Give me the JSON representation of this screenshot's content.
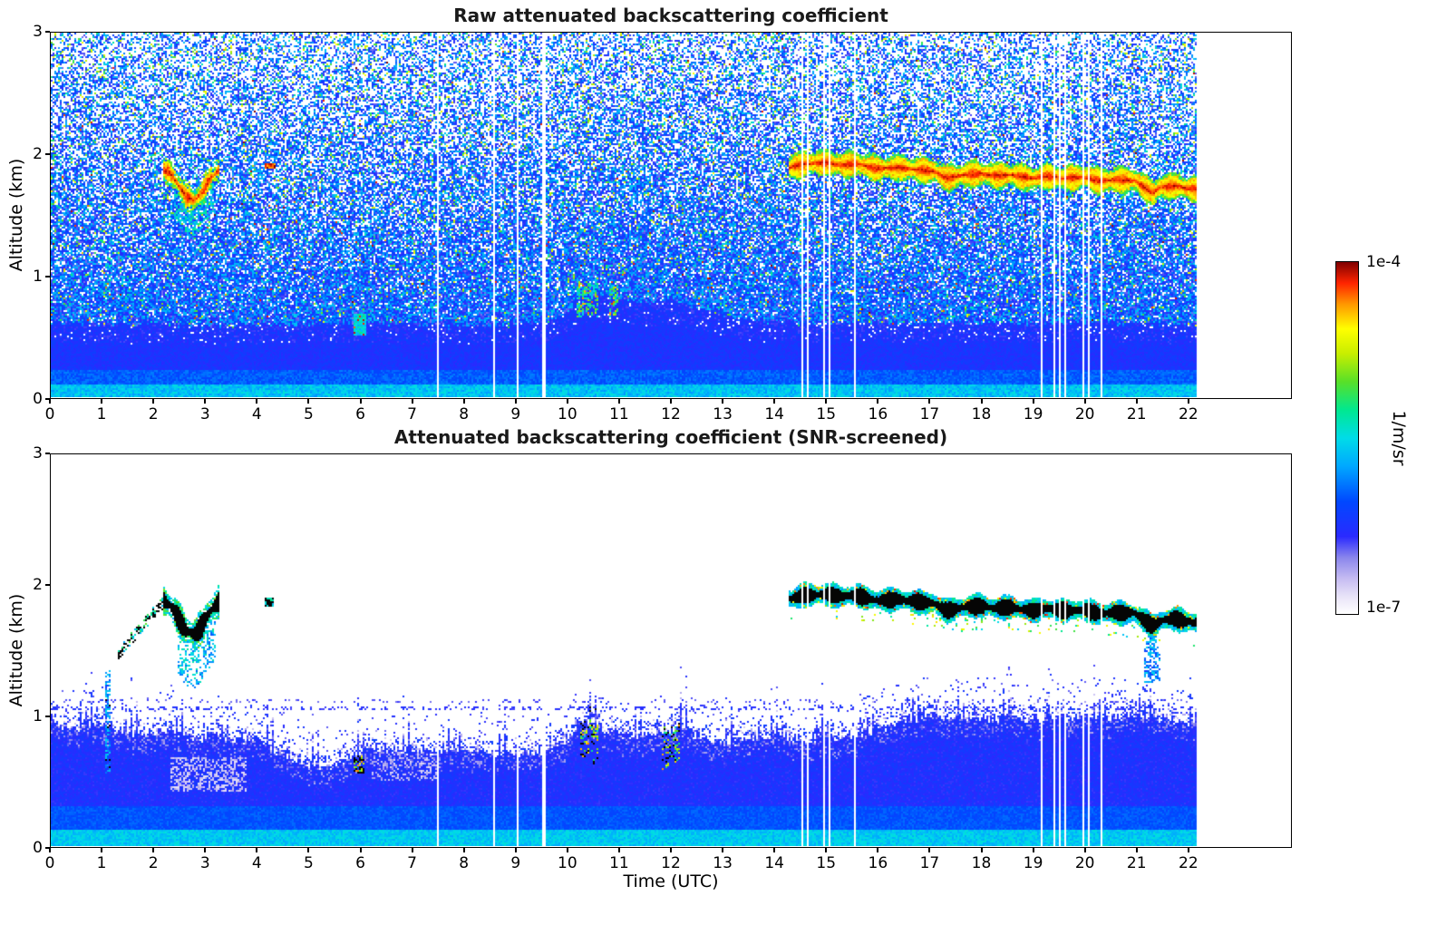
{
  "colorbar": {
    "label": "1/m/sr",
    "top_label": "1e-4",
    "bottom_label": "1e-7",
    "stops": [
      [
        0.0,
        "#ffffff"
      ],
      [
        0.05,
        "#e8e3f8"
      ],
      [
        0.1,
        "#c6bcf2"
      ],
      [
        0.16,
        "#8a86ec"
      ],
      [
        0.22,
        "#2a2aff"
      ],
      [
        0.32,
        "#0048ff"
      ],
      [
        0.42,
        "#00a8ff"
      ],
      [
        0.5,
        "#00dce8"
      ],
      [
        0.58,
        "#00e890"
      ],
      [
        0.66,
        "#58e028"
      ],
      [
        0.74,
        "#c8ee00"
      ],
      [
        0.81,
        "#ffff00"
      ],
      [
        0.88,
        "#ff9800"
      ],
      [
        0.94,
        "#ff2400"
      ],
      [
        1.0,
        "#7f0000"
      ]
    ]
  },
  "chart_data": [
    {
      "type": "heatmap",
      "title": "Raw attenuated backscattering coefficient",
      "xlabel": "",
      "ylabel": "Altitude (km)",
      "xlim": [
        0,
        24
      ],
      "ylim": [
        0,
        3
      ],
      "xticks": [
        0,
        1,
        2,
        3,
        4,
        5,
        6,
        7,
        8,
        9,
        10,
        11,
        12,
        13,
        14,
        15,
        16,
        17,
        18,
        19,
        20,
        21,
        22
      ],
      "yticks": [
        0,
        1,
        2,
        3
      ],
      "time_end": 22.2,
      "colorscale": {
        "min_label": "1e-7",
        "max_label": "1e-4",
        "units": "1/m/sr"
      },
      "features": {
        "cloud_band_center_km": [
          [
            14.3,
            1.89
          ],
          [
            14.6,
            1.92
          ],
          [
            15.0,
            1.93
          ],
          [
            15.3,
            1.91
          ],
          [
            15.6,
            1.92
          ],
          [
            16.0,
            1.88
          ],
          [
            16.4,
            1.89
          ],
          [
            16.8,
            1.87
          ],
          [
            17.1,
            1.86
          ],
          [
            17.35,
            1.8
          ],
          [
            17.7,
            1.83
          ],
          [
            18.0,
            1.84
          ],
          [
            18.3,
            1.82
          ],
          [
            18.6,
            1.83
          ],
          [
            19.0,
            1.8
          ],
          [
            19.3,
            1.82
          ],
          [
            19.6,
            1.8
          ],
          [
            20.0,
            1.81
          ],
          [
            20.3,
            1.78
          ],
          [
            20.6,
            1.79
          ],
          [
            21.0,
            1.78
          ],
          [
            21.2,
            1.72
          ],
          [
            21.35,
            1.68
          ],
          [
            21.5,
            1.73
          ],
          [
            21.8,
            1.74
          ],
          [
            22.0,
            1.72
          ],
          [
            22.2,
            1.71
          ]
        ],
        "low_cloud_center_km": [
          [
            2.18,
            1.88
          ],
          [
            2.32,
            1.84
          ],
          [
            2.48,
            1.74
          ],
          [
            2.62,
            1.65
          ],
          [
            2.78,
            1.62
          ],
          [
            2.92,
            1.68
          ],
          [
            3.06,
            1.78
          ],
          [
            3.2,
            1.85
          ],
          [
            3.28,
            1.88
          ]
        ],
        "boundary_top_km": [
          [
            0,
            0.62
          ],
          [
            1,
            0.6
          ],
          [
            2,
            0.6
          ],
          [
            3,
            0.58
          ],
          [
            4,
            0.6
          ],
          [
            5,
            0.6
          ],
          [
            6,
            0.62
          ],
          [
            7,
            0.59
          ],
          [
            8,
            0.58
          ],
          [
            9,
            0.6
          ],
          [
            9.8,
            0.63
          ],
          [
            10.2,
            0.8
          ],
          [
            10.6,
            0.85
          ],
          [
            11,
            0.8
          ],
          [
            11.5,
            0.78
          ],
          [
            12,
            0.82
          ],
          [
            12.5,
            0.73
          ],
          [
            13,
            0.66
          ],
          [
            14,
            0.62
          ],
          [
            15,
            0.6
          ],
          [
            16,
            0.62
          ],
          [
            17,
            0.6
          ],
          [
            18,
            0.62
          ],
          [
            19,
            0.6
          ],
          [
            20,
            0.62
          ],
          [
            21,
            0.6
          ],
          [
            22.2,
            0.6
          ]
        ],
        "data_gaps_utc": [
          [
            7.48,
            7.52
          ],
          [
            8.58,
            8.62
          ],
          [
            9.02,
            9.06
          ],
          [
            9.53,
            9.57
          ],
          [
            14.52,
            14.56
          ],
          [
            14.64,
            14.67
          ],
          [
            14.97,
            15.0
          ],
          [
            15.06,
            15.09
          ],
          [
            15.54,
            15.58
          ],
          [
            19.18,
            19.22
          ],
          [
            19.42,
            19.46
          ],
          [
            19.52,
            19.56
          ],
          [
            19.62,
            19.65
          ],
          [
            19.98,
            20.03
          ],
          [
            20.07,
            20.12
          ],
          [
            20.32,
            20.36
          ]
        ]
      }
    },
    {
      "type": "heatmap",
      "title": "Attenuated backscattering coefficient (SNR-screened)",
      "xlabel": "Time (UTC)",
      "ylabel": "Altitude (km)",
      "xlim": [
        0,
        24
      ],
      "ylim": [
        0,
        3
      ],
      "xticks": [
        0,
        1,
        2,
        3,
        4,
        5,
        6,
        7,
        8,
        9,
        10,
        11,
        12,
        13,
        14,
        15,
        16,
        17,
        18,
        19,
        20,
        21,
        22
      ],
      "yticks": [
        0,
        1,
        2,
        3
      ],
      "time_end": 22.2,
      "colorscale": {
        "min_label": "1e-7",
        "max_label": "1e-4",
        "units": "1/m/sr"
      },
      "features": {
        "layer_edge_km": [
          [
            0,
            0.97
          ],
          [
            0.4,
            0.9
          ],
          [
            0.8,
            0.95
          ],
          [
            1.2,
            0.9
          ],
          [
            1.6,
            0.85
          ],
          [
            2.0,
            0.88
          ],
          [
            2.4,
            0.85
          ],
          [
            2.8,
            0.82
          ],
          [
            3.2,
            0.85
          ],
          [
            3.6,
            0.8
          ],
          [
            4.0,
            0.82
          ],
          [
            4.4,
            0.72
          ],
          [
            4.8,
            0.65
          ],
          [
            5.2,
            0.6
          ],
          [
            5.6,
            0.63
          ],
          [
            6.0,
            0.72
          ],
          [
            6.4,
            0.76
          ],
          [
            6.8,
            0.72
          ],
          [
            7.2,
            0.74
          ],
          [
            7.6,
            0.73
          ],
          [
            8.0,
            0.72
          ],
          [
            8.4,
            0.7
          ],
          [
            8.8,
            0.72
          ],
          [
            9.2,
            0.7
          ],
          [
            9.6,
            0.72
          ],
          [
            10.0,
            0.8
          ],
          [
            10.3,
            0.95
          ],
          [
            10.6,
            0.92
          ],
          [
            11.0,
            0.85
          ],
          [
            11.4,
            0.82
          ],
          [
            11.8,
            0.88
          ],
          [
            12.2,
            0.92
          ],
          [
            12.6,
            0.82
          ],
          [
            13.0,
            0.78
          ],
          [
            13.4,
            0.82
          ],
          [
            13.8,
            0.85
          ],
          [
            14.2,
            0.83
          ],
          [
            14.6,
            0.8
          ],
          [
            15.0,
            0.85
          ],
          [
            15.4,
            0.82
          ],
          [
            15.8,
            0.88
          ],
          [
            16.2,
            0.92
          ],
          [
            16.6,
            0.98
          ],
          [
            17.0,
            1.0
          ],
          [
            17.4,
            0.97
          ],
          [
            17.8,
            1.0
          ],
          [
            18.2,
            0.98
          ],
          [
            18.6,
            1.0
          ],
          [
            19.0,
            0.97
          ],
          [
            19.4,
            1.0
          ],
          [
            19.8,
            0.98
          ],
          [
            20.2,
            1.0
          ],
          [
            20.6,
            0.97
          ],
          [
            21.0,
            1.0
          ],
          [
            21.4,
            0.98
          ],
          [
            21.8,
            0.96
          ],
          [
            22.2,
            0.93
          ]
        ],
        "dashed_lines_km": [
          1.05,
          1.11
        ],
        "plume_utc": [
          21.2,
          21.5
        ]
      }
    }
  ]
}
